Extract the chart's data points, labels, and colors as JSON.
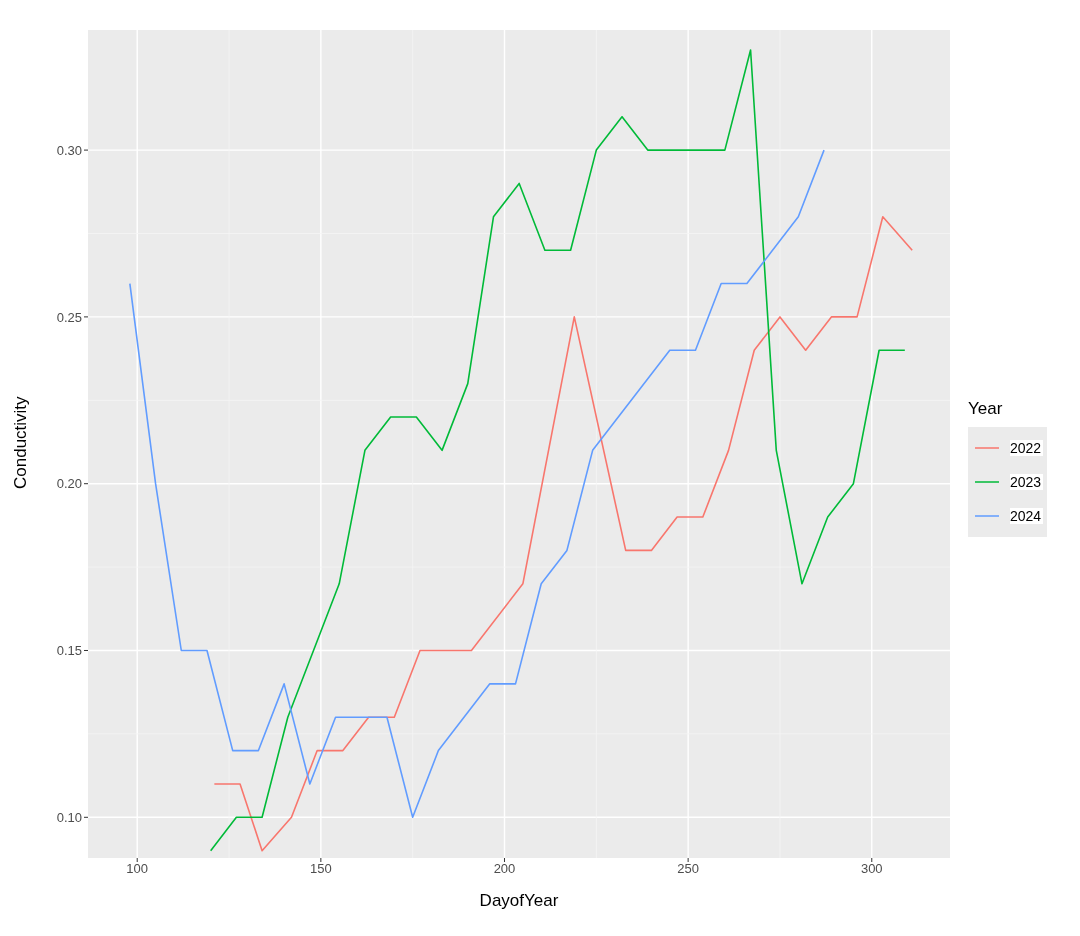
{
  "chart_data": {
    "type": "line",
    "xlabel": "DayofYear",
    "ylabel": "Conductivity",
    "legend_title": "Year",
    "legend": "right",
    "grid": true,
    "marker": "none",
    "line_style": "solid",
    "xlim": [
      86.6,
      321.3
    ],
    "xticks": [
      100,
      150,
      200,
      250,
      300
    ],
    "ylim": [
      0.0878,
      0.336
    ],
    "yticks": [
      {
        "value": 0.1,
        "label": "0.10"
      },
      {
        "value": 0.15,
        "label": "0.15"
      },
      {
        "value": 0.2,
        "label": "0.20"
      },
      {
        "value": 0.25,
        "label": "0.25"
      },
      {
        "value": 0.3,
        "label": "0.30"
      }
    ],
    "series": [
      {
        "name": "2022",
        "color": "#f8766d",
        "x": [
          121,
          128,
          134,
          142,
          149,
          156,
          163,
          170,
          177,
          191,
          205,
          219,
          233,
          240,
          247,
          254,
          261,
          268,
          275,
          282,
          289,
          296,
          303,
          311
        ],
        "values": [
          0.11,
          0.11,
          0.09,
          0.1,
          0.12,
          0.12,
          0.13,
          0.13,
          0.15,
          0.15,
          0.17,
          0.25,
          0.18,
          0.18,
          0.19,
          0.19,
          0.21,
          0.24,
          0.25,
          0.24,
          0.25,
          0.25,
          0.28,
          0.27
        ]
      },
      {
        "name": "2023",
        "color": "#00ba38",
        "x": [
          120,
          127,
          134,
          141,
          155,
          162,
          169,
          176,
          183,
          190,
          197,
          204,
          211,
          218,
          225,
          232,
          239,
          260,
          267,
          274,
          281,
          288,
          295,
          302,
          309
        ],
        "values": [
          0.09,
          0.1,
          0.1,
          0.13,
          0.17,
          0.21,
          0.22,
          0.22,
          0.21,
          0.23,
          0.28,
          0.29,
          0.27,
          0.27,
          0.3,
          0.31,
          0.3,
          0.3,
          0.33,
          0.21,
          0.17,
          0.19,
          0.2,
          0.24,
          0.24
        ]
      },
      {
        "name": "2024",
        "color": "#619cff",
        "x": [
          98,
          105,
          112,
          119,
          126,
          133,
          140,
          147,
          154,
          168,
          175,
          182,
          196,
          203,
          210,
          217,
          224,
          245,
          252,
          259,
          266,
          280,
          287
        ],
        "values": [
          0.26,
          0.2,
          0.15,
          0.15,
          0.12,
          0.12,
          0.14,
          0.11,
          0.13,
          0.13,
          0.1,
          0.12,
          0.14,
          0.14,
          0.17,
          0.18,
          0.21,
          0.24,
          0.24,
          0.26,
          0.26,
          0.28,
          0.3
        ]
      }
    ]
  }
}
